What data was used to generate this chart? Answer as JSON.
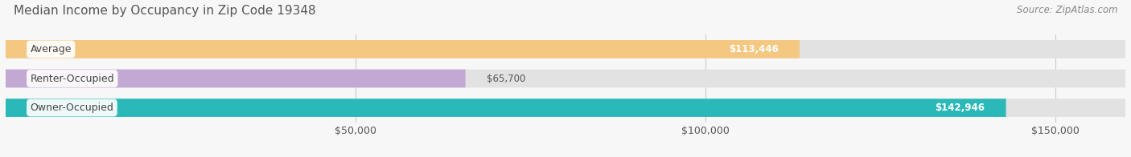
{
  "title": "Median Income by Occupancy in Zip Code 19348",
  "source": "Source: ZipAtlas.com",
  "categories": [
    "Owner-Occupied",
    "Renter-Occupied",
    "Average"
  ],
  "values": [
    142946,
    65700,
    113446
  ],
  "bar_colors": [
    "#2ab8b8",
    "#c4a8d4",
    "#f5c882"
  ],
  "value_labels": [
    "$142,946",
    "$65,700",
    "$113,446"
  ],
  "value_label_inside": [
    true,
    false,
    true
  ],
  "xlim": [
    0,
    160000
  ],
  "xticks": [
    0,
    50000,
    100000,
    150000
  ],
  "xtick_labels": [
    "",
    "$50,000",
    "$100,000",
    "$150,000"
  ],
  "title_fontsize": 11,
  "source_fontsize": 8.5,
  "label_fontsize": 9,
  "value_fontsize": 8.5,
  "background_color": "#f7f7f7",
  "bar_bg_color": "#e2e2e2",
  "bar_height": 0.62,
  "grid_color": "#cccccc",
  "bar_gap": 0.12
}
